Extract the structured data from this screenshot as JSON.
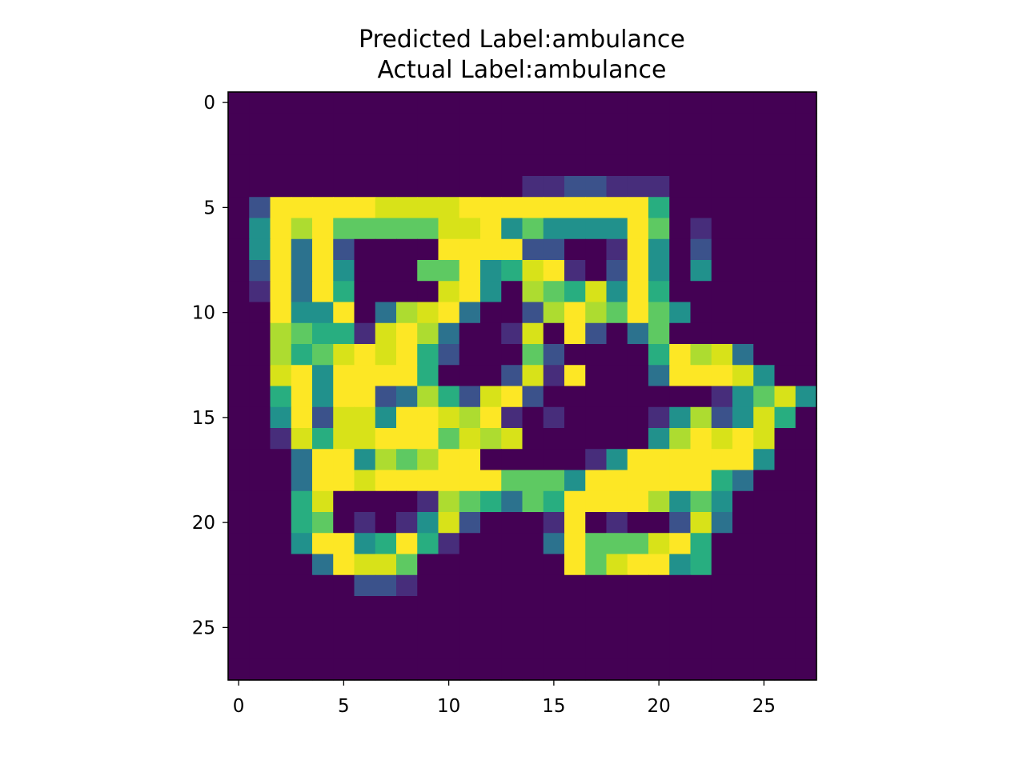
{
  "figure": {
    "title_line1": "Predicted Label:ambulance",
    "title_line2": "Actual Label:ambulance"
  },
  "chart_data": {
    "type": "heatmap",
    "title": "Predicted Label:ambulance\nActual Label:ambulance",
    "xlabel": "",
    "ylabel": "",
    "colormap": "viridis",
    "value_range": [
      0,
      1
    ],
    "xlim": [
      -0.5,
      27.5
    ],
    "ylim": [
      27.5,
      -0.5
    ],
    "x_ticks": [
      0,
      5,
      10,
      15,
      20,
      25
    ],
    "y_ticks": [
      0,
      5,
      10,
      15,
      20,
      25
    ],
    "x_tick_labels": [
      "0",
      "5",
      "10",
      "15",
      "20",
      "25"
    ],
    "y_tick_labels": [
      "0",
      "5",
      "10",
      "15",
      "20",
      "25"
    ],
    "grid": false,
    "rows": [
      "0000000000000000000000000000",
      "0000000000000000000000000000",
      "0000000000000000000000000000",
      "0000000000000000000000000000",
      "0000000000000011221110000000",
      "0299999888899999999950000000",
      "0497966666889464444960100000",
      "0493920000999922001940200000",
      "0293940006694589102940400000",
      "0193950000894076584950000000",
      "0094490378930027976964000000",
      "0076551897300180920360000000",
      "0075689895200062000059783000",
      "0089499995000281900039998400",
      "0059499237528920000000014684",
      "0049288499879101000014724850",
      "0018588999687800000047989800",
      "0003994767990000014999999400",
      "0003998999999666499999953000",
      "0005800001765365999974640000",
      "0005601014820001901002830000",
      "0004994595100003966689500000",
      "0000398860000000968994500000",
      "0000002210000000000000000000",
      "0000000000000000000000000000",
      "0000000000000000000000000000",
      "0000000000000000000000000000",
      "0000000000000000000000000000"
    ],
    "row_encoding": "each character is an intensity level 0-9 (0 = min/dark purple, 9 = max/yellow)"
  }
}
